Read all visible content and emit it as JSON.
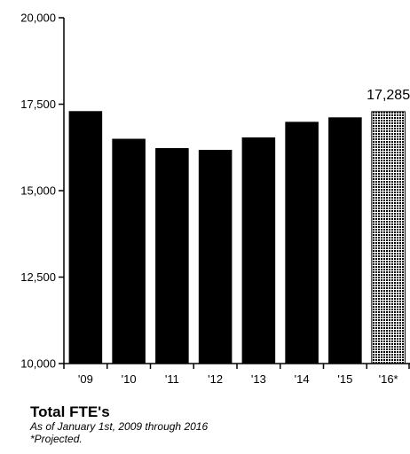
{
  "chart_data": {
    "type": "bar",
    "categories": [
      "'09",
      "'10",
      "'11",
      "'12",
      "'13",
      "'14",
      "'15",
      "'16*"
    ],
    "values": [
      17300,
      16500,
      16230,
      16180,
      16540,
      16990,
      17120,
      17285
    ],
    "projected": [
      false,
      false,
      false,
      false,
      false,
      false,
      false,
      true
    ],
    "ylim": [
      10000,
      20000
    ],
    "yticks": [
      10000,
      12500,
      15000,
      17500,
      20000
    ],
    "ytick_labels": [
      "10,000",
      "12,500",
      "15,000",
      "17,500",
      "20,000"
    ],
    "grid": false,
    "data_labels": [
      {
        "index": 7,
        "text": "17,285"
      }
    ],
    "colors": {
      "bar": "#000000",
      "projected_pattern": "dotted black on white"
    }
  },
  "caption": {
    "title": "Total FTE's",
    "subtitle": "As of January 1st, 2009 through 2016",
    "note": "*Projected."
  }
}
